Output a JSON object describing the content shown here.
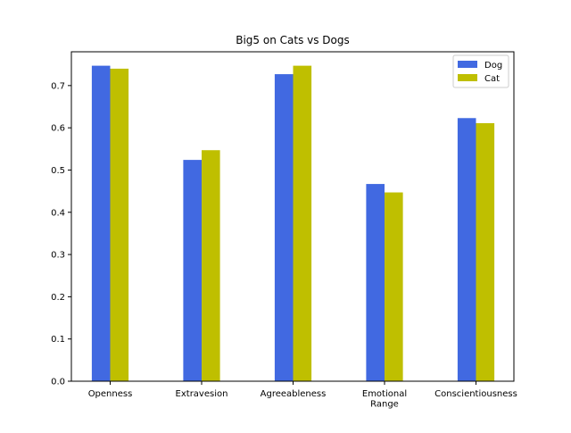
{
  "chart_data": {
    "type": "bar",
    "title": "Big5 on Cats vs Dogs",
    "xlabel": "",
    "ylabel": "",
    "categories": [
      "Openness",
      "Extravesion",
      "Agreeableness",
      "Emotional Range",
      "Conscientiousness"
    ],
    "category_label_lines": [
      [
        "Openness"
      ],
      [
        "Extravesion"
      ],
      [
        "Agreeableness"
      ],
      [
        "Emotional",
        "Range"
      ],
      [
        "Conscientiousness"
      ]
    ],
    "series": [
      {
        "name": "Dog",
        "color": "#4169e1",
        "values": [
          0.747,
          0.524,
          0.727,
          0.467,
          0.623
        ]
      },
      {
        "name": "Cat",
        "color": "#bfbf00",
        "values": [
          0.74,
          0.547,
          0.747,
          0.447,
          0.611
        ]
      }
    ],
    "ylim": [
      0,
      0.78
    ],
    "yticks": [
      "0.0",
      "0.1",
      "0.2",
      "0.3",
      "0.4",
      "0.5",
      "0.6",
      "0.7"
    ],
    "grid": false,
    "legend_position": "top-right"
  }
}
